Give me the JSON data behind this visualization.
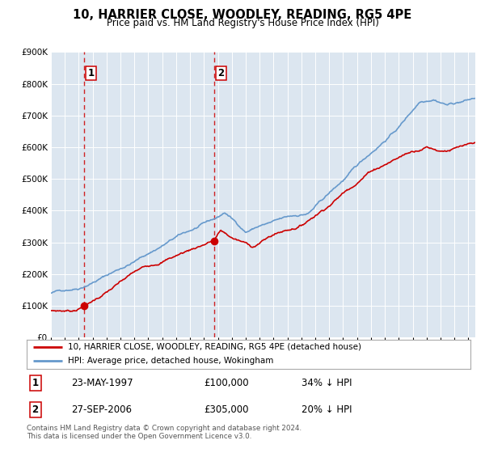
{
  "title": "10, HARRIER CLOSE, WOODLEY, READING, RG5 4PE",
  "subtitle": "Price paid vs. HM Land Registry's House Price Index (HPI)",
  "sale1_label": "23-MAY-1997",
  "sale1_price": 100000,
  "sale1_year": 1997.39,
  "sale1_hpi_pct": "34% ↓ HPI",
  "sale2_label": "27-SEP-2006",
  "sale2_price": 305000,
  "sale2_year": 2006.74,
  "sale2_hpi_pct": "20% ↓ HPI",
  "legend_line1": "10, HARRIER CLOSE, WOODLEY, READING, RG5 4PE (detached house)",
  "legend_line2": "HPI: Average price, detached house, Wokingham",
  "footer": "Contains HM Land Registry data © Crown copyright and database right 2024.\nThis data is licensed under the Open Government Licence v3.0.",
  "line_color_red": "#cc0000",
  "line_color_blue": "#6699cc",
  "background_color": "#dce6f0",
  "ylim": [
    0,
    900000
  ],
  "xlim_start": 1995.0,
  "xlim_end": 2025.5
}
